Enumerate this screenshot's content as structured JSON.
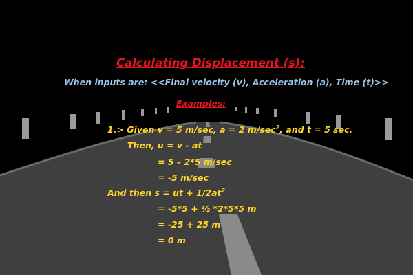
{
  "title": "Calculating Displacement (s):",
  "subtitle": "When inputs are: <<Final velocity (v), Acceleration (a), Time (t)>>",
  "examples_label": "Examples:",
  "given": {
    "pre": "1.> Given v = 5 m/sec, a = 2 m/sec",
    "sup": "2",
    "post": ", and t = 5 sec."
  },
  "lines": [
    "Then, u = v - at",
    "= 5 – 2*5 m/sec",
    "= -5 m/sec"
  ],
  "formula": {
    "pre": "And then  s = ut + 1/2at",
    "sup": "2"
  },
  "result_lines": [
    "= -5*5 + ½ *2*5*5 m",
    "= -25 + 25 m",
    "= 0 m"
  ],
  "colors": {
    "background": "#000000",
    "road": "#3f3f3f",
    "road_marking": "#8a8a8a",
    "title": "#e8141c",
    "subtitle": "#9bc3e6",
    "body_text": "#ffd42a"
  }
}
